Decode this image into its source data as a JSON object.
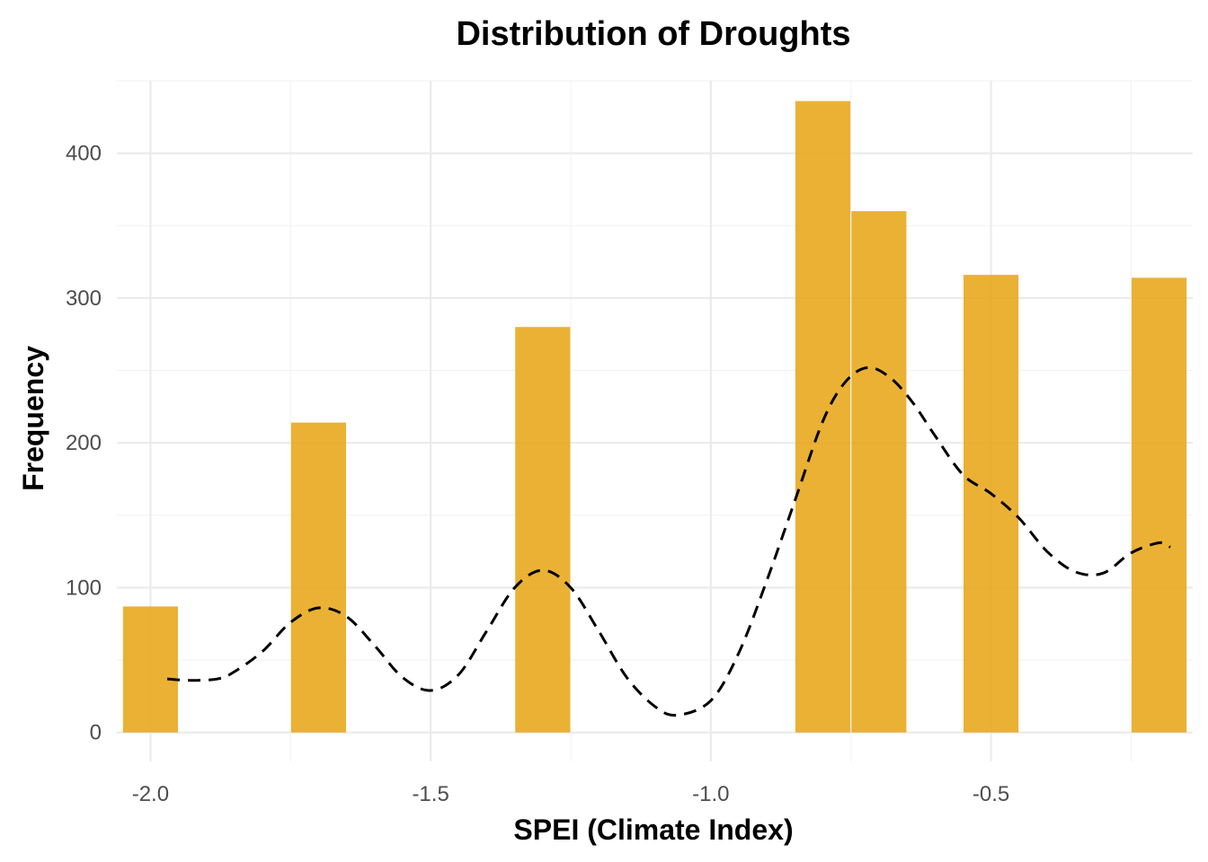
{
  "chart_data": {
    "type": "bar",
    "title": "Distribution of Droughts",
    "xlabel": "SPEI (Climate Index)",
    "ylabel": "Frequency",
    "xlim": [
      -2.06,
      -0.14
    ],
    "ylim": [
      -20,
      450
    ],
    "x_ticks": [
      {
        "value": -2.0,
        "label": "-2.0"
      },
      {
        "value": -1.5,
        "label": "-1.5"
      },
      {
        "value": -1.0,
        "label": "-1.0"
      },
      {
        "value": -0.5,
        "label": "-0.5"
      }
    ],
    "y_ticks": [
      {
        "value": 0,
        "label": "0"
      },
      {
        "value": 100,
        "label": "100"
      },
      {
        "value": 200,
        "label": "200"
      },
      {
        "value": 300,
        "label": "300"
      },
      {
        "value": 400,
        "label": "400"
      }
    ],
    "bin_width": 0.1,
    "bars": [
      {
        "x": -2.0,
        "value": 87
      },
      {
        "x": -1.7,
        "value": 214
      },
      {
        "x": -1.3,
        "value": 280
      },
      {
        "x": -0.8,
        "value": 436
      },
      {
        "x": -0.7,
        "value": 360
      },
      {
        "x": -0.5,
        "value": 316
      },
      {
        "x": -0.2,
        "value": 314
      }
    ],
    "density_line": {
      "style": "dashed",
      "points": [
        [
          -1.97,
          37
        ],
        [
          -1.93,
          36
        ],
        [
          -1.88,
          37
        ],
        [
          -1.85,
          42
        ],
        [
          -1.8,
          56
        ],
        [
          -1.75,
          76
        ],
        [
          -1.7,
          86
        ],
        [
          -1.65,
          80
        ],
        [
          -1.6,
          60
        ],
        [
          -1.55,
          38
        ],
        [
          -1.5,
          29
        ],
        [
          -1.45,
          40
        ],
        [
          -1.4,
          70
        ],
        [
          -1.35,
          100
        ],
        [
          -1.3,
          112
        ],
        [
          -1.25,
          100
        ],
        [
          -1.2,
          70
        ],
        [
          -1.15,
          38
        ],
        [
          -1.1,
          18
        ],
        [
          -1.06,
          12
        ],
        [
          -1.0,
          22
        ],
        [
          -0.95,
          55
        ],
        [
          -0.9,
          105
        ],
        [
          -0.85,
          160
        ],
        [
          -0.8,
          215
        ],
        [
          -0.76,
          242
        ],
        [
          -0.72,
          252
        ],
        [
          -0.68,
          245
        ],
        [
          -0.64,
          228
        ],
        [
          -0.6,
          205
        ],
        [
          -0.55,
          178
        ],
        [
          -0.5,
          165
        ],
        [
          -0.45,
          148
        ],
        [
          -0.4,
          125
        ],
        [
          -0.35,
          111
        ],
        [
          -0.3,
          110
        ],
        [
          -0.25,
          124
        ],
        [
          -0.2,
          131
        ],
        [
          -0.18,
          128
        ]
      ]
    },
    "colors": {
      "bar": "#e8a81e",
      "bar_opacity": 0.9,
      "density": "#000000"
    },
    "grid": true,
    "legend": "none"
  }
}
